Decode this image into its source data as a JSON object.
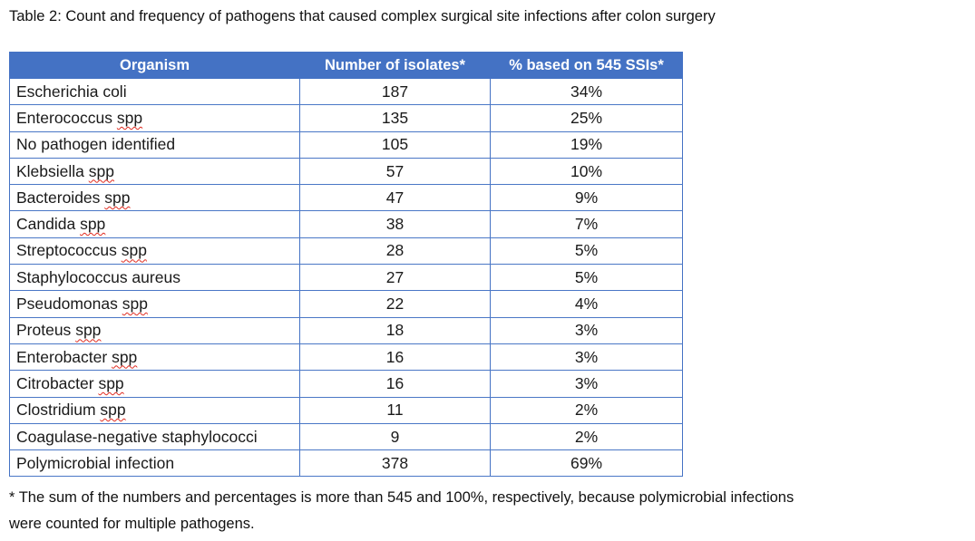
{
  "caption": "Table 2: Count and frequency of pathogens that caused complex surgical site infections after colon surgery",
  "table": {
    "headers": [
      "Organism",
      "Number of isolates*",
      "% based on 545 SSIs*"
    ],
    "rows": [
      {
        "organism_prefix": "Escherichia coli",
        "organism_flagged": "",
        "isolates": "187",
        "percent": "34%"
      },
      {
        "organism_prefix": "Enterococcus ",
        "organism_flagged": "spp",
        "isolates": "135",
        "percent": "25%"
      },
      {
        "organism_prefix": "No pathogen identified",
        "organism_flagged": "",
        "isolates": "105",
        "percent": "19%"
      },
      {
        "organism_prefix": "Klebsiella ",
        "organism_flagged": "spp",
        "isolates": "57",
        "percent": "10%"
      },
      {
        "organism_prefix": "Bacteroides ",
        "organism_flagged": "spp",
        "isolates": "47",
        "percent": "9%"
      },
      {
        "organism_prefix": "Candida ",
        "organism_flagged": "spp",
        "isolates": "38",
        "percent": "7%"
      },
      {
        "organism_prefix": "Streptococcus ",
        "organism_flagged": "spp",
        "isolates": "28",
        "percent": "5%"
      },
      {
        "organism_prefix": "Staphylococcus aureus",
        "organism_flagged": "",
        "isolates": "27",
        "percent": "5%"
      },
      {
        "organism_prefix": "Pseudomonas ",
        "organism_flagged": "spp",
        "isolates": "22",
        "percent": "4%"
      },
      {
        "organism_prefix": "Proteus ",
        "organism_flagged": "spp",
        "isolates": "18",
        "percent": "3%"
      },
      {
        "organism_prefix": "Enterobacter ",
        "organism_flagged": "spp",
        "isolates": "16",
        "percent": "3%"
      },
      {
        "organism_prefix": "Citrobacter ",
        "organism_flagged": "spp",
        "isolates": "16",
        "percent": "3%"
      },
      {
        "organism_prefix": "Clostridium ",
        "organism_flagged": "spp",
        "isolates": "11",
        "percent": "2%"
      },
      {
        "organism_prefix": "Coagulase-negative staphylococci",
        "organism_flagged": "",
        "isolates": "9",
        "percent": "2%"
      },
      {
        "organism_prefix": "Polymicrobial infection",
        "organism_flagged": "",
        "isolates": "378",
        "percent": "69%"
      }
    ]
  },
  "footnote": {
    "line1": "* The sum of the numbers and percentages is more than 545 and 100%, respectively, because polymicrobial infections",
    "line2": "were counted for multiple pathogens."
  },
  "colors": {
    "header_bg": "#4472C4",
    "header_text": "#FFFFFF",
    "table_border": "#4472C4",
    "spellcheck_underline": "#E02B20",
    "body_text": "#1A1A1A"
  }
}
